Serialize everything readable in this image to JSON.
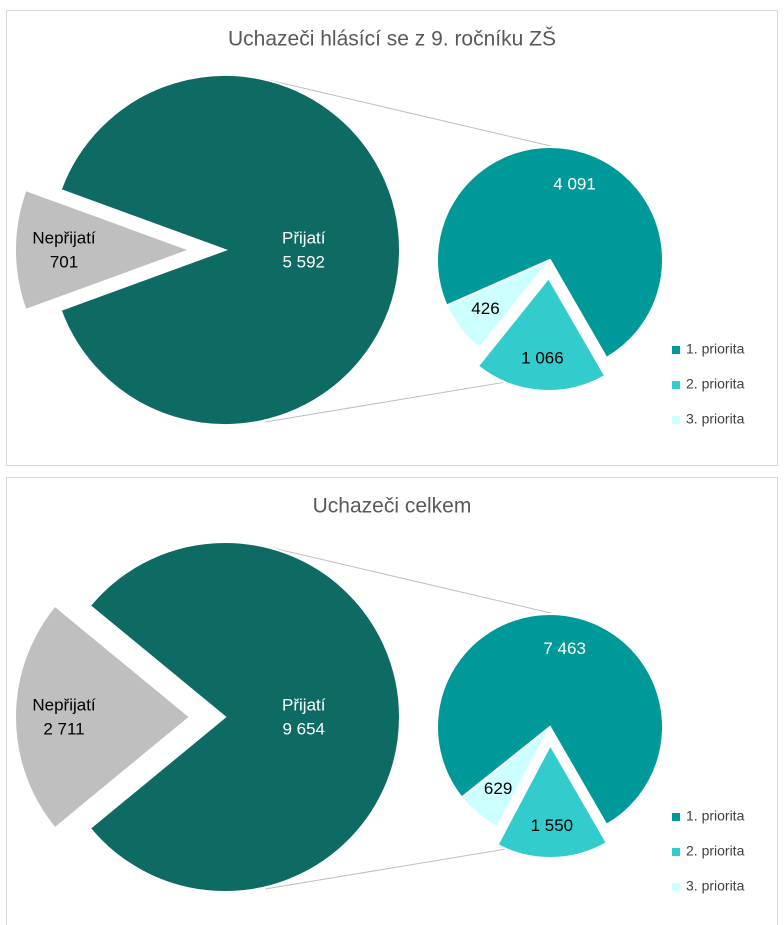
{
  "chart_data": [
    {
      "type": "pie",
      "title": "Uchazeči hlásící se z 9. ročníku ZŠ",
      "categories": [
        "Nepřijatí",
        "Přijatí"
      ],
      "values": [
        701,
        5592
      ],
      "value_labels": [
        "701",
        "5 592"
      ],
      "colors": [
        "#bfbfbf",
        "#0d6b64"
      ],
      "secondary": {
        "categories": [
          "1. priorita",
          "2. priorita",
          "3. priorita"
        ],
        "values": [
          4091,
          1066,
          426
        ],
        "value_labels": [
          "4 091",
          "1 066",
          "426"
        ],
        "colors": [
          "#009999",
          "#33cccc",
          "#ccffff"
        ]
      },
      "legend": "right"
    },
    {
      "type": "pie",
      "title": "Uchazeči celkem",
      "categories": [
        "Nepřijatí",
        "Přijatí"
      ],
      "values": [
        2711,
        9654
      ],
      "value_labels": [
        "2 711",
        "9 654"
      ],
      "colors": [
        "#bfbfbf",
        "#0d6b64"
      ],
      "secondary": {
        "categories": [
          "1. priorita",
          "2. priorita",
          "3. priorita"
        ],
        "values": [
          7463,
          1550,
          629
        ],
        "value_labels": [
          "7 463",
          "1 550",
          "629"
        ],
        "colors": [
          "#009999",
          "#33cccc",
          "#ccffff"
        ]
      },
      "legend": "right"
    }
  ]
}
